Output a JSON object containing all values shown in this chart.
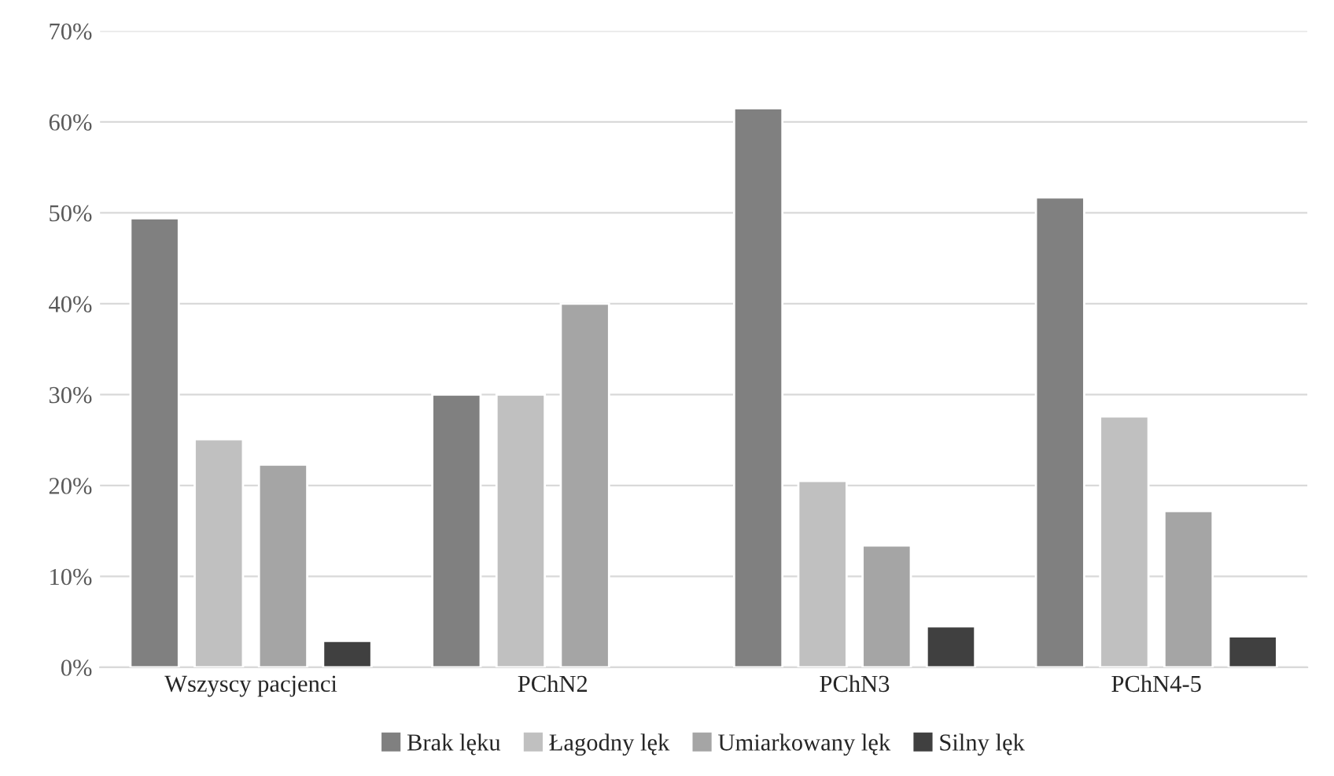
{
  "chart_data": {
    "type": "bar",
    "categories": [
      "Wszyscy pacjenci",
      "PChN2",
      "PChN3",
      "PChN4-5"
    ],
    "series": [
      {
        "name": "Brak lęku",
        "color": "#808080",
        "values": [
          49.4,
          30,
          61.5,
          51.7
        ]
      },
      {
        "name": "Łagodny lęk",
        "color": "#c0c0c0",
        "values": [
          25.1,
          30,
          20.5,
          27.6
        ]
      },
      {
        "name": "Umiarkowany lęk",
        "color": "#a5a5a5",
        "values": [
          22.3,
          40,
          13.4,
          17.2
        ]
      },
      {
        "name": "Silny lęk",
        "color": "#404040",
        "values": [
          2.9,
          null,
          4.5,
          3.4
        ]
      }
    ],
    "ylim": [
      0,
      70
    ],
    "yticks": [
      {
        "value": 0,
        "label": "0%"
      },
      {
        "value": 10,
        "label": "10%"
      },
      {
        "value": 20,
        "label": "20%"
      },
      {
        "value": 30,
        "label": "30%"
      },
      {
        "value": 40,
        "label": "40%"
      },
      {
        "value": 50,
        "label": "50%"
      },
      {
        "value": 60,
        "label": "60%"
      },
      {
        "value": 70,
        "label": "70%"
      }
    ],
    "grid": "y",
    "legend": "bottom"
  }
}
